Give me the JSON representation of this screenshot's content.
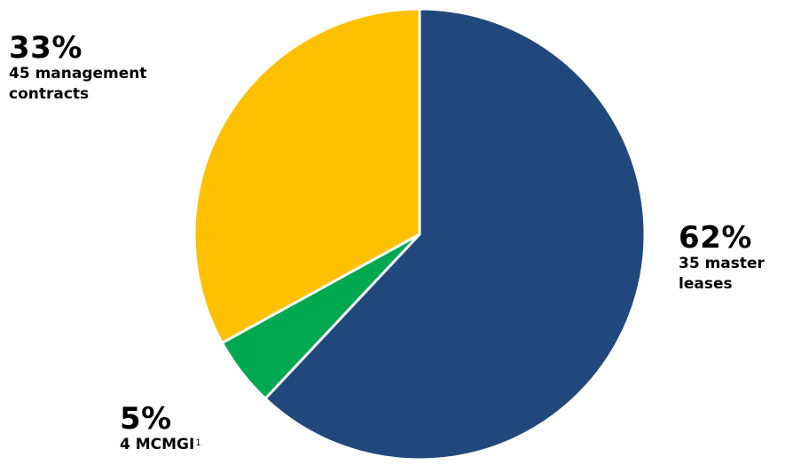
{
  "chart_data": {
    "type": "pie",
    "start_angle_deg": 0,
    "direction": "clockwise",
    "slices": [
      {
        "key": "master",
        "percent_label": "62%",
        "description": "35 master leases",
        "value": 62,
        "color": "#21487C"
      },
      {
        "key": "mcmgi",
        "percent_label": "5%",
        "description": "4 MCMGI",
        "footnote": "1",
        "value": 5,
        "color": "#00A84F"
      },
      {
        "key": "mgmt",
        "percent_label": "33%",
        "description": "45 management contracts",
        "value": 33,
        "color": "#FFC000"
      }
    ],
    "slice_border_color": "#FFFFFF"
  },
  "labels": {
    "mgmt": {
      "pct": "33%",
      "line1": "45 management",
      "line2": "contracts"
    },
    "master": {
      "pct": "62%",
      "line1": "35 master",
      "line2": "leases"
    },
    "mcmgi": {
      "pct": "5%",
      "line1": "4 MCMGI",
      "sup": "1"
    }
  }
}
